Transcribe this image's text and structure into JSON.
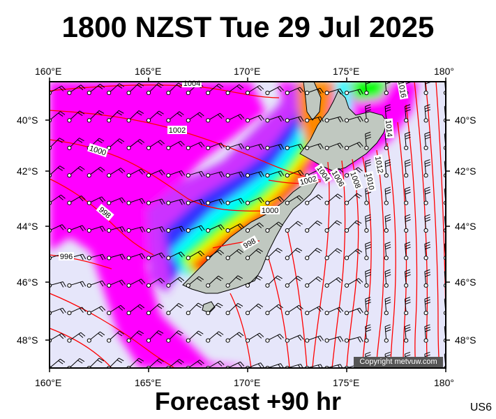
{
  "title": "1800 NZST Tue 29 Jul 2025",
  "footer": "Forecast +90 hr",
  "region_code": "US6",
  "copyright": "Copyright metvuw.com",
  "lon_labels": [
    "160°E",
    "165°E",
    "170°E",
    "175°E",
    "180°"
  ],
  "lat_labels": [
    "40°S",
    "42°S",
    "44°S",
    "46°S",
    "48°S"
  ],
  "isobar_labels": [
    "1004",
    "1002",
    "1000",
    "998",
    "996",
    "1002",
    "1000",
    "998",
    "1004",
    "1006",
    "1008",
    "1010",
    "1012",
    "1014",
    "1016"
  ],
  "colors": {
    "isobar": "#ff0000",
    "land": "#c0c8c0",
    "background": "#e6e6fa"
  },
  "rain_colors": [
    "#ff00ff",
    "#cc33ff",
    "#3333ff",
    "#00ffff",
    "#00ff00",
    "#ffff00",
    "#ff8800",
    "#ff0000"
  ]
}
